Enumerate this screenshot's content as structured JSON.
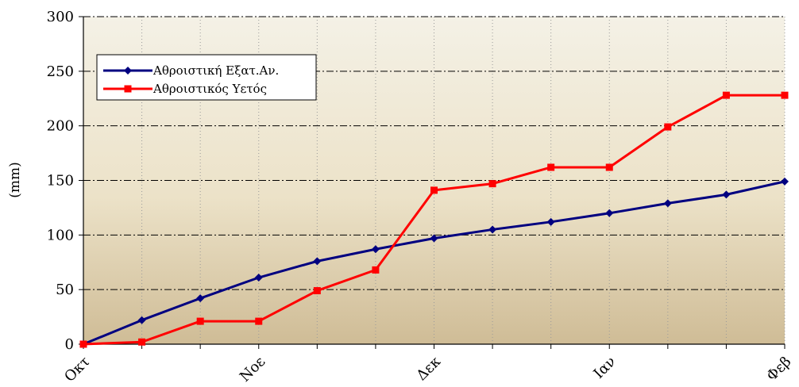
{
  "chart_data": {
    "type": "line",
    "title": "",
    "xlabel": "",
    "ylabel": "(mm)",
    "ylim": [
      0,
      300
    ],
    "yticks": [
      0,
      50,
      100,
      150,
      200,
      250,
      300
    ],
    "x_points": 13,
    "x_tick_labels": [
      {
        "index": 0,
        "label": "Οκτ"
      },
      {
        "index": 3,
        "label": "Νοε"
      },
      {
        "index": 6,
        "label": "Δεκ"
      },
      {
        "index": 9,
        "label": "Ιαν"
      },
      {
        "index": 12,
        "label": "Φεβ"
      }
    ],
    "grid": true,
    "legend_position": "top-left",
    "series": [
      {
        "name": "Αθροιστική Εξατ.Αν.",
        "color": "#000080",
        "marker": "diamond",
        "values": [
          0,
          22,
          42,
          61,
          76,
          87,
          97,
          105,
          112,
          120,
          129,
          137,
          149
        ]
      },
      {
        "name": "Αθροιστικός Υετός",
        "color": "#ff0000",
        "marker": "square",
        "values": [
          0,
          2,
          21,
          21,
          49,
          68,
          141,
          147,
          162,
          162,
          199,
          228,
          228
        ]
      }
    ]
  }
}
